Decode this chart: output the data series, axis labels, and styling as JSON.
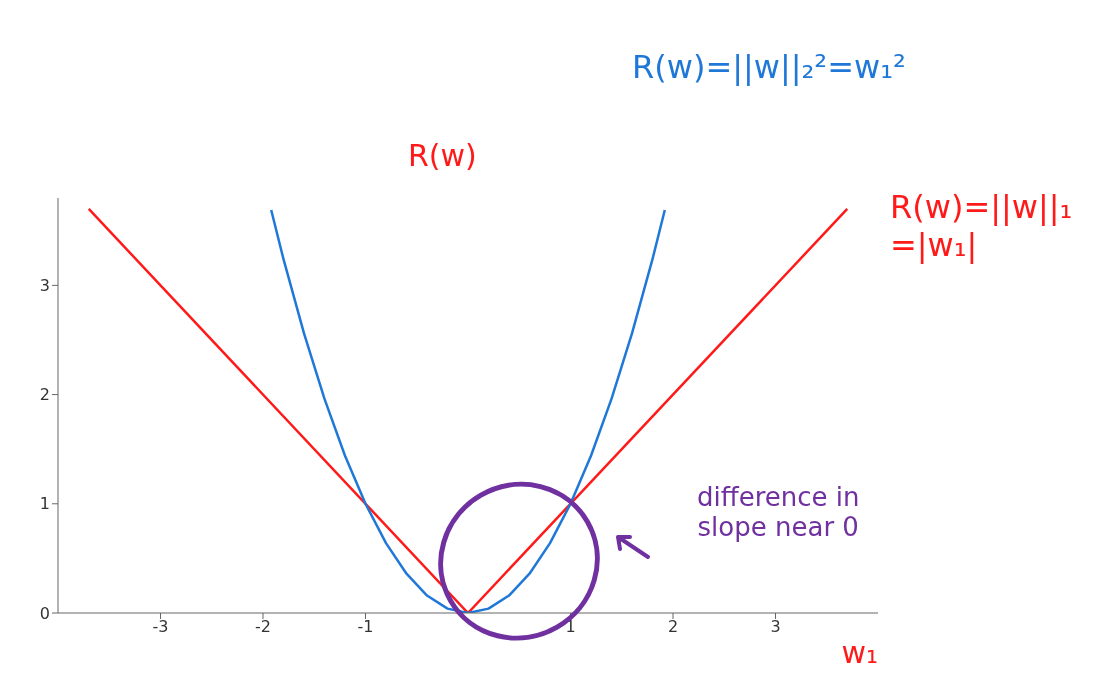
{
  "chart_data": {
    "type": "line",
    "xlabel": "w₁",
    "ylabel": "R(w)",
    "series": [
      {
        "name": "R(w)=||w||₁ =|w₁|",
        "color": "#ff1a1a",
        "x": [
          -3.7,
          0,
          3.7
        ],
        "values": [
          3.7,
          0,
          3.7
        ]
      },
      {
        "name": "R(w)=||w||₂²=w₁²",
        "color": "#1f78d8",
        "x": [
          -1.92,
          -1.8,
          -1.6,
          -1.4,
          -1.2,
          -1,
          -0.8,
          -0.6,
          -0.4,
          -0.2,
          0,
          0.2,
          0.4,
          0.6,
          0.8,
          1,
          1.2,
          1.4,
          1.6,
          1.8,
          1.92
        ],
        "values": [
          3.69,
          3.24,
          2.56,
          1.96,
          1.44,
          1,
          0.64,
          0.36,
          0.16,
          0.04,
          0,
          0.04,
          0.16,
          0.36,
          0.64,
          1,
          1.44,
          1.96,
          2.56,
          3.24,
          3.69
        ]
      }
    ],
    "xlim": [
      -4,
      4
    ],
    "xticks": [
      -3,
      -2,
      -1,
      1,
      2,
      3
    ],
    "ylim": [
      0,
      3.8
    ],
    "yticks": [
      0,
      1,
      2,
      3
    ],
    "marker": "none",
    "line_style": "solid",
    "grid": false,
    "legend": false,
    "annotations": [
      "difference in slope near 0"
    ]
  }
}
